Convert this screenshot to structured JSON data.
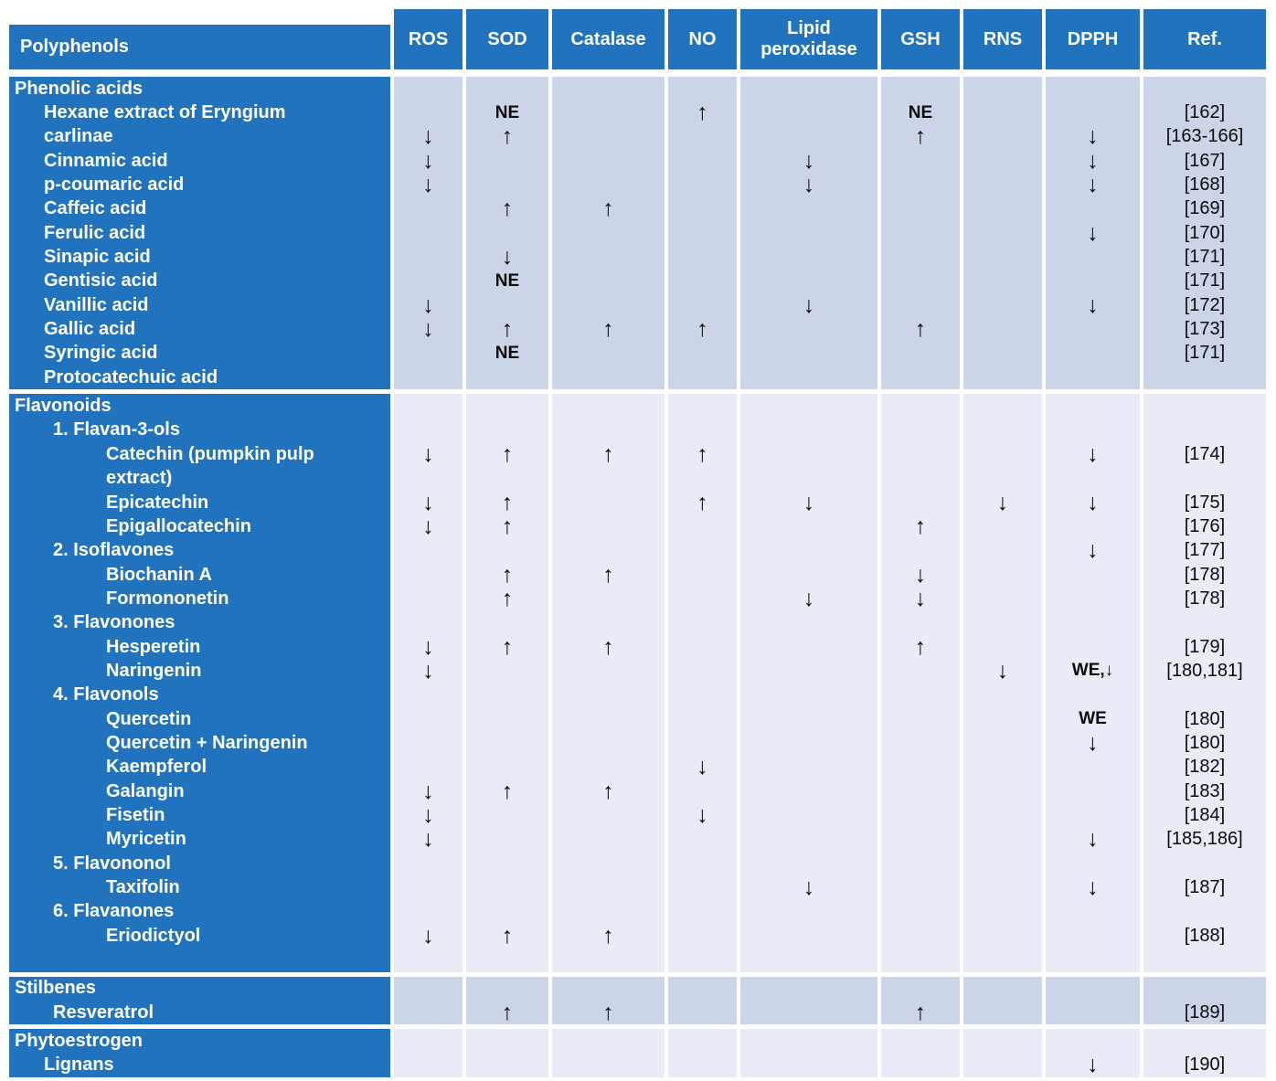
{
  "colors": {
    "header_blue": "#2173bd",
    "row_dark": "#ccd4e8",
    "row_light": "#e9ecf6"
  },
  "table": {
    "columns": [
      {
        "key": "name",
        "label": "Polyphenols"
      },
      {
        "key": "ros",
        "label": "ROS"
      },
      {
        "key": "sod",
        "label": "SOD"
      },
      {
        "key": "catalase",
        "label": "Catalase"
      },
      {
        "key": "no",
        "label": "NO"
      },
      {
        "key": "lp",
        "label": "Lipid peroxidase"
      },
      {
        "key": "gsh",
        "label": "GSH"
      },
      {
        "key": "rns",
        "label": "RNS"
      },
      {
        "key": "dpph",
        "label": "DPPH"
      },
      {
        "key": "ref",
        "label": "Ref."
      }
    ],
    "sections": [
      {
        "name": "phenolic-acids",
        "shade": "dark",
        "rows": [
          {
            "label": "Phenolic acids",
            "indent": 0,
            "cells": {}
          },
          {
            "label": "Hexane extract of Eryngium",
            "indent": 1,
            "cells": {
              "sod": "NE",
              "no": "↑",
              "gsh": "NE",
              "ref": "[162]"
            }
          },
          {
            "label": "carlinae",
            "indent": 1,
            "cells": {
              "ros": "↓",
              "sod": "↑",
              "gsh": "↑",
              "dpph": "↓",
              "ref": "[163-166]"
            }
          },
          {
            "label": "Cinnamic acid",
            "indent": 1,
            "cells": {
              "ros": "↓",
              "lp": "↓",
              "dpph": "↓",
              "ref": "[167]"
            }
          },
          {
            "label": "p-coumaric acid",
            "indent": 1,
            "cells": {
              "ros": "↓",
              "lp": "↓",
              "dpph": "↓",
              "ref": "[168]"
            }
          },
          {
            "label": "Caffeic acid",
            "indent": 1,
            "cells": {
              "sod": "↑",
              "catalase": "↑",
              "ref": "[169]"
            }
          },
          {
            "label": "Ferulic acid",
            "indent": 1,
            "cells": {
              "dpph": "↓",
              "ref": "[170]"
            }
          },
          {
            "label": "Sinapic acid",
            "indent": 1,
            "cells": {
              "sod": "↓",
              "ref": "[171]"
            }
          },
          {
            "label": "Gentisic acid",
            "indent": 1,
            "cells": {
              "sod": "NE",
              "ref": "[171]"
            }
          },
          {
            "label": "Vanillic acid",
            "indent": 1,
            "cells": {
              "ros": "↓",
              "lp": "↓",
              "dpph": "↓",
              "ref": "[172]"
            }
          },
          {
            "label": "Gallic acid",
            "indent": 1,
            "cells": {
              "ros": "↓",
              "sod": "↑",
              "catalase": "↑",
              "no": "↑",
              "gsh": "↑",
              "ref": "[173]"
            }
          },
          {
            "label": "Syringic acid",
            "indent": 1,
            "cells": {
              "sod": "NE",
              "ref": "[171]"
            }
          },
          {
            "label": "Protocatechuic acid",
            "indent": 1,
            "cells": {}
          }
        ]
      },
      {
        "name": "flavonoids",
        "shade": "light",
        "rows": [
          {
            "label": "Flavonoids",
            "indent": 0,
            "cells": {}
          },
          {
            "label": "1.  Flavan-3-ols",
            "indent": 2,
            "cells": {}
          },
          {
            "label": "Catechin (pumpkin pulp",
            "indent": 3,
            "cells": {
              "ros": "↓",
              "sod": "↑",
              "catalase": "↑",
              "no": "↑",
              "dpph": "↓",
              "ref": "[174]"
            }
          },
          {
            "label": "extract)",
            "indent": 3,
            "cells": {}
          },
          {
            "label": "Epicatechin",
            "indent": 3,
            "cells": {
              "ros": "↓",
              "sod": "↑",
              "no": "↑",
              "lp": "↓",
              "rns": "↓",
              "dpph": "↓",
              "ref": "[175]"
            }
          },
          {
            "label": "Epigallocatechin",
            "indent": 3,
            "cells": {
              "ros": "↓",
              "sod": "↑",
              "gsh": "↑",
              "ref": "[176]"
            }
          },
          {
            "label": "2.  Isoflavones",
            "indent": 2,
            "cells": {
              "dpph": "↓",
              "ref": "[177]"
            }
          },
          {
            "label": "Biochanin  A",
            "indent": 3,
            "cells": {
              "sod": "↑",
              "catalase": "↑",
              "gsh": "↓",
              "ref": "[178]"
            }
          },
          {
            "label": "Formononetin",
            "indent": 3,
            "cells": {
              "sod": "↑",
              "lp": "↓",
              "gsh": "↓",
              "ref": "[178]"
            }
          },
          {
            "label": "3.  Flavonones",
            "indent": 2,
            "cells": {}
          },
          {
            "label": "Hesperetin",
            "indent": 3,
            "cells": {
              "ros": "↓",
              "sod": "↑",
              "catalase": "↑",
              "gsh": "↑",
              "ref": "[179]"
            }
          },
          {
            "label": "Naringenin",
            "indent": 3,
            "cells": {
              "ros": "↓",
              "rns": "↓",
              "dpph": "WE,↓",
              "ref": "[180,181]"
            }
          },
          {
            "label": "4.  Flavonols",
            "indent": 2,
            "cells": {}
          },
          {
            "label": "Quercetin",
            "indent": 3,
            "cells": {
              "dpph": "WE",
              "ref": "[180]"
            }
          },
          {
            "label": "Quercetin + Naringenin",
            "indent": 3,
            "cells": {
              "dpph": "↓",
              "ref": "[180]"
            }
          },
          {
            "label": "Kaempferol",
            "indent": 3,
            "cells": {
              "no": "↓",
              "ref": "[182]"
            }
          },
          {
            "label": "Galangin",
            "indent": 3,
            "cells": {
              "ros": "↓",
              "sod": "↑",
              "catalase": "↑",
              "ref": "[183]"
            }
          },
          {
            "label": "Fisetin",
            "indent": 3,
            "cells": {
              "ros": "↓",
              "no": "↓",
              "ref": "[184]"
            }
          },
          {
            "label": "Myricetin",
            "indent": 3,
            "cells": {
              "ros": "↓",
              "dpph": "↓",
              "ref": "[185,186]"
            }
          },
          {
            "label": "5.  Flavononol",
            "indent": 2,
            "cells": {}
          },
          {
            "label": "Taxifolin",
            "indent": 3,
            "cells": {
              "lp": "↓",
              "dpph": "↓",
              "ref": "[187]"
            }
          },
          {
            "label": "6.  Flavanones",
            "indent": 2,
            "cells": {}
          },
          {
            "label": "Eriodictyol",
            "indent": 3,
            "cells": {
              "ros": "↓",
              "sod": "↑",
              "catalase": "↑",
              "ref": "[188]"
            }
          },
          {
            "label": "",
            "indent": 0,
            "cells": {}
          }
        ]
      },
      {
        "name": "stilbenes",
        "shade": "dark",
        "rows": [
          {
            "label": "Stilbenes",
            "indent": 0,
            "cells": {}
          },
          {
            "label": "Resveratrol",
            "indent": 2,
            "cells": {
              "sod": "↑",
              "catalase": "↑",
              "gsh": "↑",
              "ref": "[189]"
            }
          }
        ]
      },
      {
        "name": "phytoestrogen",
        "shade": "light",
        "rows": [
          {
            "label": "Phytoestrogen",
            "indent": 0,
            "cells": {}
          },
          {
            "label": "Lignans",
            "indent": 1,
            "cells": {
              "dpph": "↓",
              "ref": "[190]"
            }
          }
        ]
      }
    ]
  }
}
